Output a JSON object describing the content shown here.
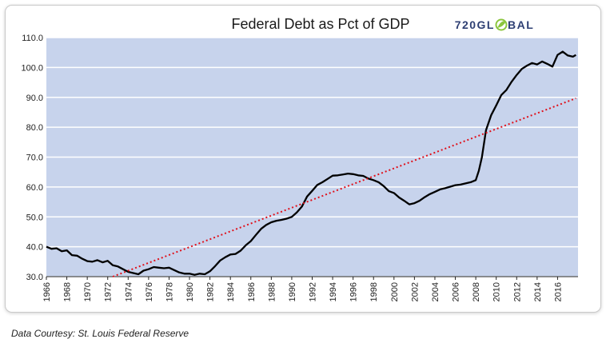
{
  "chart_data": {
    "type": "line",
    "title": "Federal Debt as Pct of GDP",
    "xlabel": "",
    "ylabel": "",
    "ylim": [
      30,
      110
    ],
    "yticks": [
      "30.0",
      "40.0",
      "50.0",
      "60.0",
      "70.0",
      "80.0",
      "90.0",
      "100.0",
      "110.0"
    ],
    "xlim": [
      1966,
      2018
    ],
    "xticks": [
      "1966",
      "1968",
      "1970",
      "1972",
      "1974",
      "1976",
      "1978",
      "1980",
      "1982",
      "1984",
      "1986",
      "1988",
      "1990",
      "1992",
      "1994",
      "1996",
      "1998",
      "2000",
      "2002",
      "2004",
      "2006",
      "2008",
      "2010",
      "2012",
      "2014",
      "2016"
    ],
    "grid": true,
    "legend": "none",
    "colors": {
      "plot_background": "#c7d3ec",
      "gridline": "#ffffff",
      "debt_line": "#000000",
      "trend_line": "#e0101a",
      "logo": "#2e3f73",
      "logo_accent": "#8cc63f"
    },
    "series": [
      {
        "style": "solid-black",
        "x": [
          1966.0,
          1966.5,
          1967.0,
          1967.5,
          1968.0,
          1968.5,
          1969.0,
          1969.5,
          1970.0,
          1970.5,
          1971.0,
          1971.5,
          1972.0,
          1972.5,
          1973.0,
          1973.5,
          1974.0,
          1974.5,
          1975.0,
          1975.5,
          1976.0,
          1976.5,
          1977.0,
          1977.5,
          1978.0,
          1978.5,
          1979.0,
          1979.5,
          1980.0,
          1980.5,
          1981.0,
          1981.5,
          1982.0,
          1982.5,
          1983.0,
          1983.5,
          1984.0,
          1984.5,
          1985.0,
          1985.5,
          1986.0,
          1986.5,
          1987.0,
          1987.5,
          1988.0,
          1988.5,
          1989.0,
          1989.5,
          1990.0,
          1990.5,
          1991.0,
          1991.5,
          1992.0,
          1992.5,
          1993.0,
          1993.5,
          1994.0,
          1994.5,
          1995.0,
          1995.5,
          1996.0,
          1996.5,
          1997.0,
          1997.5,
          1998.0,
          1998.5,
          1999.0,
          1999.5,
          2000.0,
          2000.5,
          2001.0,
          2001.5,
          2002.0,
          2002.5,
          2003.0,
          2003.5,
          2004.0,
          2004.5,
          2005.0,
          2005.5,
          2006.0,
          2006.5,
          2007.0,
          2007.5,
          2008.0,
          2008.3,
          2008.6,
          2009.0,
          2009.5,
          2010.0,
          2010.5,
          2011.0,
          2011.5,
          2012.0,
          2012.5,
          2013.0,
          2013.5,
          2014.0,
          2014.5,
          2015.0,
          2015.5,
          2016.0,
          2016.5,
          2017.0,
          2017.5,
          2017.8
        ],
        "values": [
          40.0,
          39.3,
          39.5,
          38.5,
          38.8,
          37.2,
          37.0,
          36.0,
          35.2,
          35.0,
          35.5,
          34.8,
          35.3,
          33.8,
          33.4,
          32.5,
          31.6,
          31.2,
          30.8,
          32.0,
          32.5,
          33.2,
          33.0,
          32.8,
          33.0,
          32.2,
          31.4,
          31.0,
          31.0,
          30.6,
          31.0,
          30.8,
          31.8,
          33.5,
          35.4,
          36.5,
          37.4,
          37.6,
          38.7,
          40.5,
          41.9,
          44.0,
          46.0,
          47.3,
          48.2,
          48.7,
          49.0,
          49.4,
          50.0,
          51.5,
          53.5,
          56.8,
          58.7,
          60.7,
          61.6,
          62.7,
          63.8,
          63.9,
          64.2,
          64.5,
          64.3,
          63.9,
          63.7,
          62.8,
          62.3,
          61.6,
          60.3,
          58.6,
          58.0,
          56.5,
          55.4,
          54.2,
          54.6,
          55.4,
          56.6,
          57.6,
          58.4,
          59.2,
          59.6,
          60.1,
          60.6,
          60.8,
          61.2,
          61.6,
          62.3,
          65.5,
          70.0,
          79.0,
          84.0,
          87.3,
          90.8,
          92.5,
          95.2,
          97.5,
          99.5,
          100.6,
          101.5,
          101.0,
          102.0,
          101.2,
          100.3,
          104.2,
          105.3,
          104.0,
          103.6,
          104.2
        ]
      },
      {
        "style": "dotted-red-trend",
        "x": [
          1972.5,
          2017.8
        ],
        "values": [
          30.0,
          89.7
        ]
      }
    ]
  },
  "header": {
    "logo_text_left": "720GL",
    "logo_text_right": "BAL"
  },
  "footer": {
    "caption": "Data Courtesy: St. Louis Federal Reserve"
  }
}
